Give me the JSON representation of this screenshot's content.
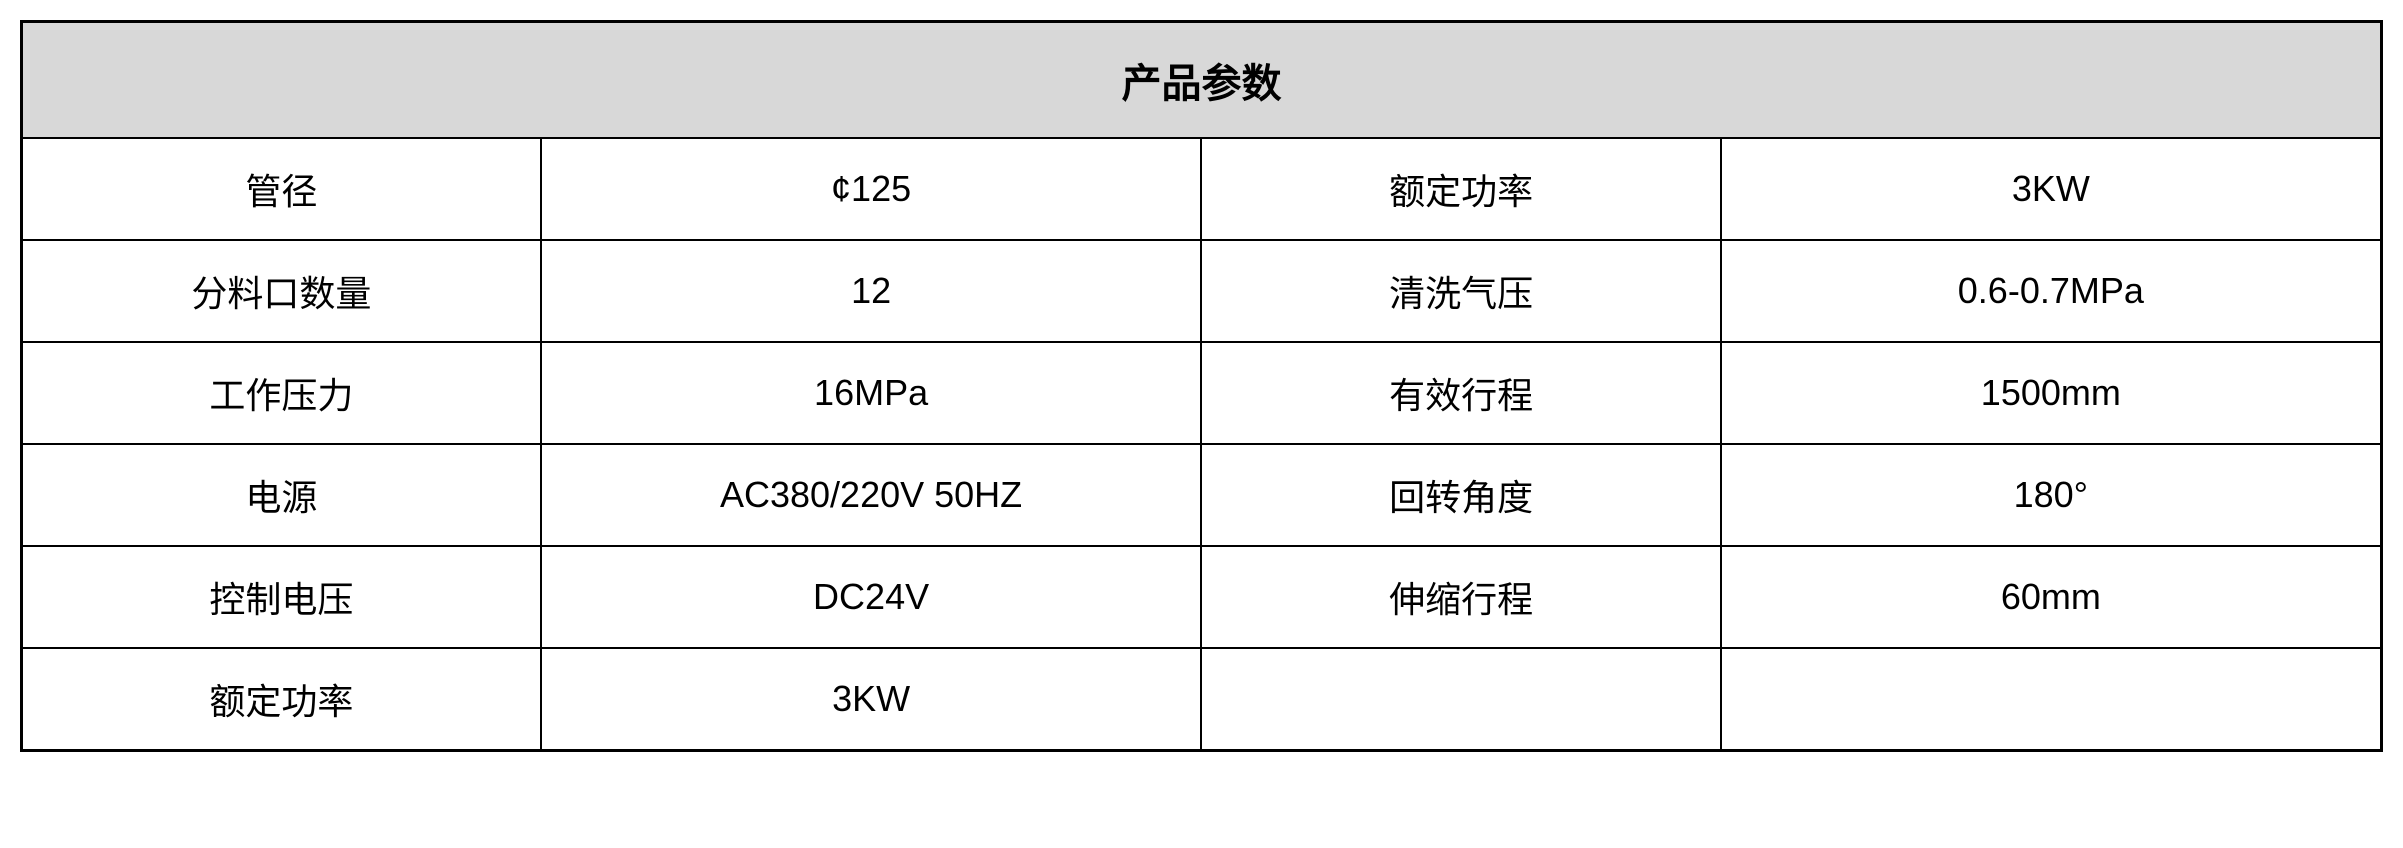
{
  "table": {
    "title": "产品参数",
    "title_fontsize": 40,
    "cell_fontsize": 36,
    "header_bg": "#d8d8d8",
    "border_color": "#000000",
    "cell_bg": "#ffffff",
    "text_color": "#000000",
    "columns": 4,
    "column_widths": [
      "22%",
      "28%",
      "22%",
      "28%"
    ],
    "rows": [
      {
        "label1": "管径",
        "value1": "¢125",
        "label2": "额定功率",
        "value2": "3KW"
      },
      {
        "label1": "分料口数量",
        "value1": "12",
        "label2": "清洗气压",
        "value2": "0.6-0.7MPa"
      },
      {
        "label1": "工作压力",
        "value1": "16MPa",
        "label2": "有效行程",
        "value2": "1500mm"
      },
      {
        "label1": "电源",
        "value1": "AC380/220V  50HZ",
        "label2": "回转角度",
        "value2": "180°"
      },
      {
        "label1": "控制电压",
        "value1": "DC24V",
        "label2": "伸缩行程",
        "value2": "60mm"
      },
      {
        "label1": "额定功率",
        "value1": "3KW",
        "label2": "",
        "value2": ""
      }
    ]
  }
}
